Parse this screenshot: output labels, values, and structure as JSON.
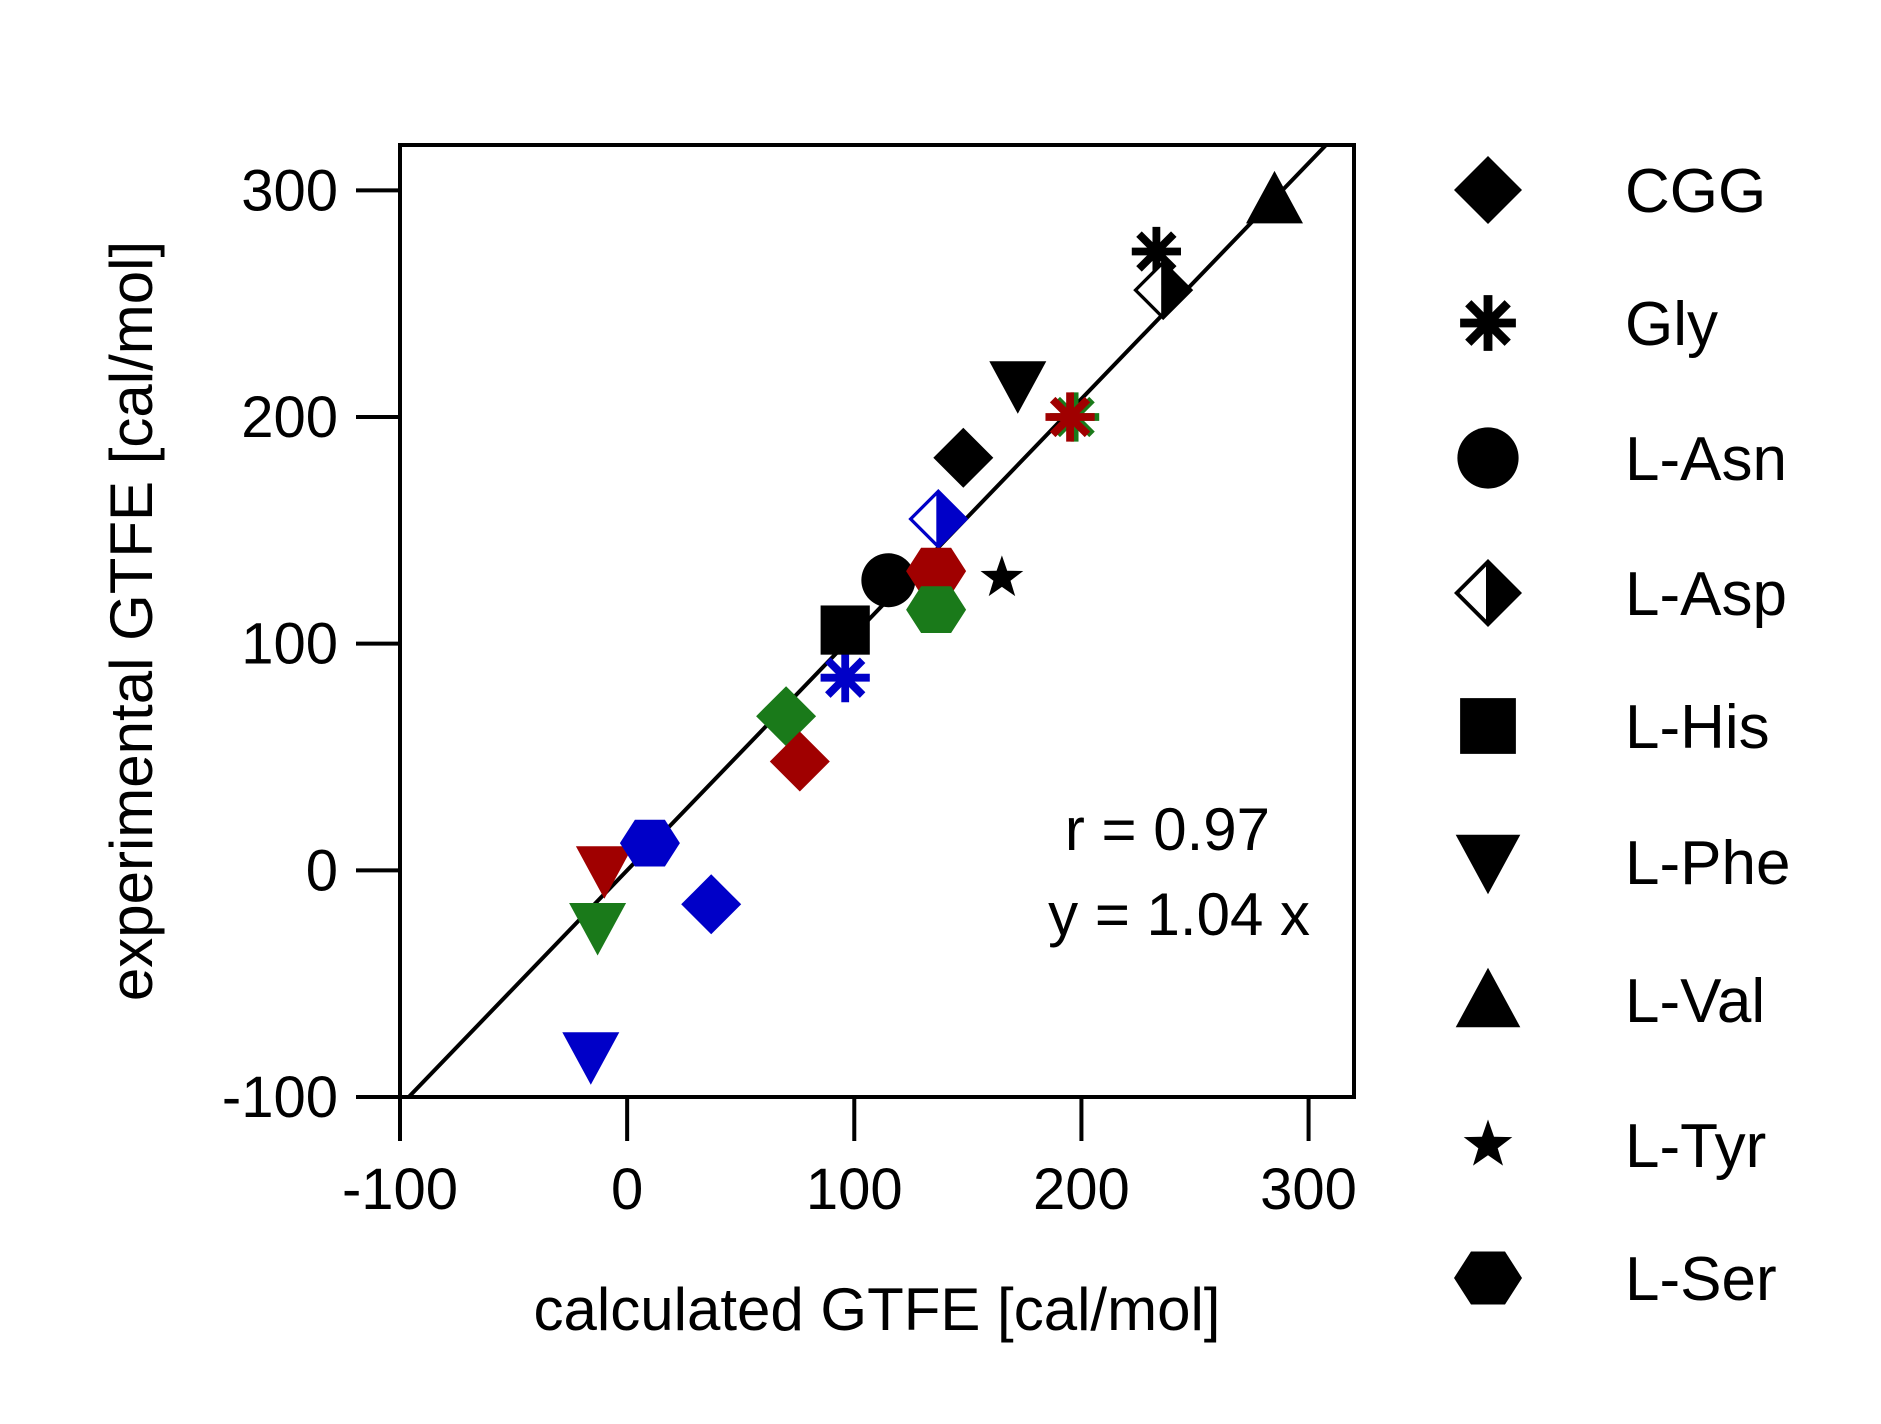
{
  "chart_data": {
    "type": "scatter",
    "xlabel": "calculated GTFE [cal/mol]",
    "ylabel": "experimental GTFE [cal/mol]",
    "xlim": [
      -100,
      320
    ],
    "ylim": [
      -100,
      320
    ],
    "xticks": [
      -100,
      0,
      100,
      200,
      300
    ],
    "yticks": [
      -100,
      0,
      100,
      200,
      300
    ],
    "xtick_labels": [
      "-100",
      "0",
      "100",
      "200",
      "300"
    ],
    "ytick_labels": [
      "-100",
      "0",
      "100",
      "200",
      "300"
    ],
    "grid": false,
    "legend_position": "right",
    "fit_line": {
      "slope": 1.04,
      "intercept": 0
    },
    "annotations": [
      "r = 0.97",
      "y = 1.04 x"
    ],
    "colors": {
      "black": "#000000",
      "blue": "#0000c8",
      "green": "#1a7a1a",
      "red": "#a00000"
    },
    "legend": [
      {
        "name": "CGG",
        "marker": "diamond"
      },
      {
        "name": "Gly",
        "marker": "asterisk"
      },
      {
        "name": "L-Asn",
        "marker": "circle"
      },
      {
        "name": "L-Asp",
        "marker": "half-diamond"
      },
      {
        "name": "L-His",
        "marker": "square"
      },
      {
        "name": "L-Phe",
        "marker": "triangle-down"
      },
      {
        "name": "L-Val",
        "marker": "triangle-up"
      },
      {
        "name": "L-Tyr",
        "marker": "star"
      },
      {
        "name": "L-Ser",
        "marker": "hexagon"
      }
    ],
    "points": [
      {
        "series": "CGG",
        "color": "black",
        "x": 148,
        "y": 182
      },
      {
        "series": "CGG",
        "color": "green",
        "x": 70,
        "y": 68
      },
      {
        "series": "CGG",
        "color": "red",
        "x": 76,
        "y": 48
      },
      {
        "series": "CGG",
        "color": "blue",
        "x": 37,
        "y": -15
      },
      {
        "series": "Gly",
        "color": "black",
        "x": 233,
        "y": 273
      },
      {
        "series": "Gly",
        "color": "blue",
        "x": 96,
        "y": 85
      },
      {
        "series": "Gly",
        "color": "green",
        "x": 197,
        "y": 200
      },
      {
        "series": "Gly",
        "color": "red",
        "x": 195,
        "y": 200
      },
      {
        "series": "L-Asn",
        "color": "black",
        "x": 115,
        "y": 128
      },
      {
        "series": "L-Asp",
        "color": "black",
        "x": 236,
        "y": 256
      },
      {
        "series": "L-Asp",
        "color": "blue",
        "x": 137,
        "y": 155
      },
      {
        "series": "L-His",
        "color": "black",
        "x": 96,
        "y": 106
      },
      {
        "series": "L-Phe",
        "color": "black",
        "x": 172,
        "y": 214
      },
      {
        "series": "L-Phe",
        "color": "red",
        "x": -10,
        "y": 0
      },
      {
        "series": "L-Phe",
        "color": "green",
        "x": -13,
        "y": -25
      },
      {
        "series": "L-Phe",
        "color": "blue",
        "x": -16,
        "y": -82
      },
      {
        "series": "L-Val",
        "color": "black",
        "x": 285,
        "y": 296
      },
      {
        "series": "L-Tyr",
        "color": "black",
        "x": 165,
        "y": 129
      },
      {
        "series": "L-Ser",
        "color": "red",
        "x": 136,
        "y": 132
      },
      {
        "series": "L-Ser",
        "color": "green",
        "x": 136,
        "y": 115
      },
      {
        "series": "L-Ser",
        "color": "blue",
        "x": 10,
        "y": 12
      }
    ]
  }
}
